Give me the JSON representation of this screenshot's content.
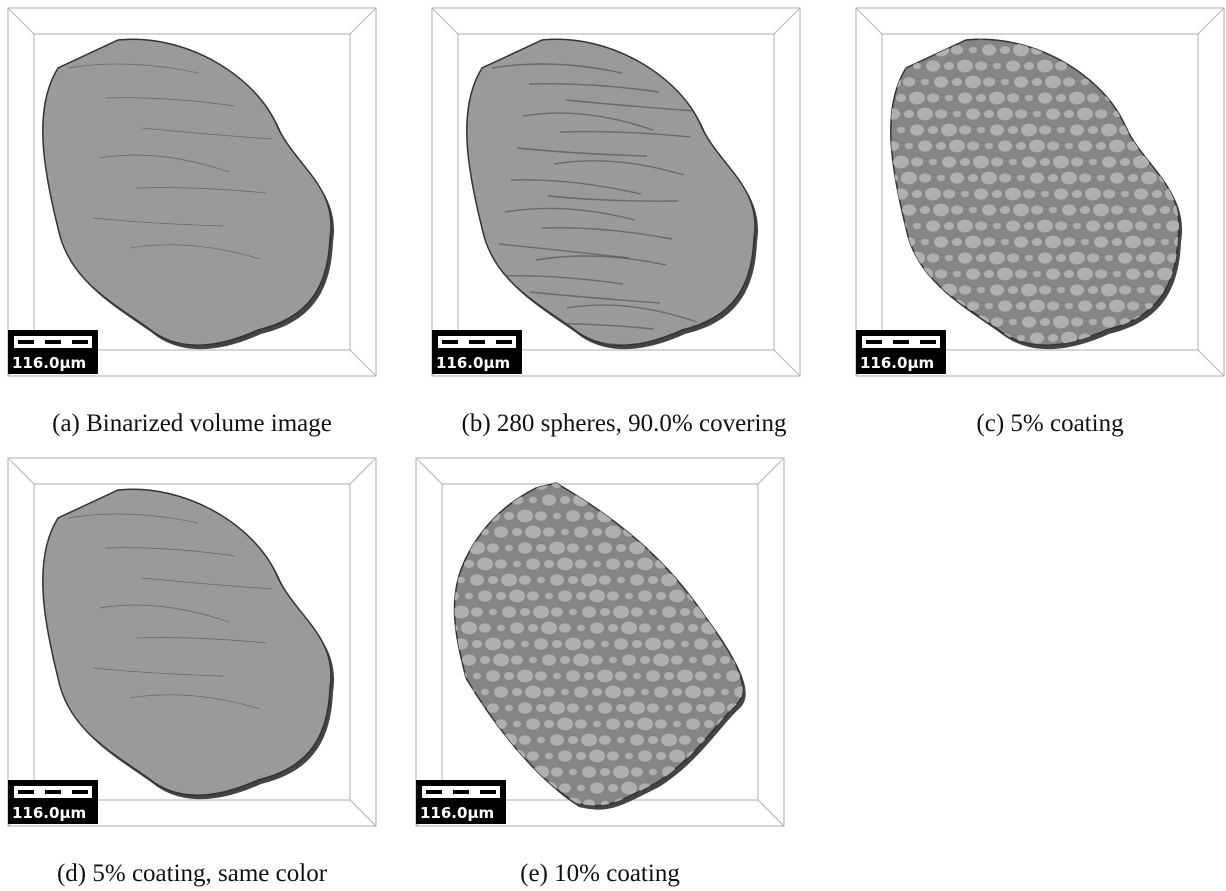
{
  "panels": [
    {
      "caption": "(a) Binarized volume image",
      "scale_label": "116.0μm"
    },
    {
      "caption": "(b) 280 spheres, 90.0% covering",
      "scale_label": "116.0μm"
    },
    {
      "caption": "(c) 5% coating",
      "scale_label": "116.0μm"
    },
    {
      "caption": "(d) 5% coating, same color",
      "scale_label": "116.0μm"
    },
    {
      "caption": "(e) 10% coating",
      "scale_label": "116.0μm"
    }
  ]
}
